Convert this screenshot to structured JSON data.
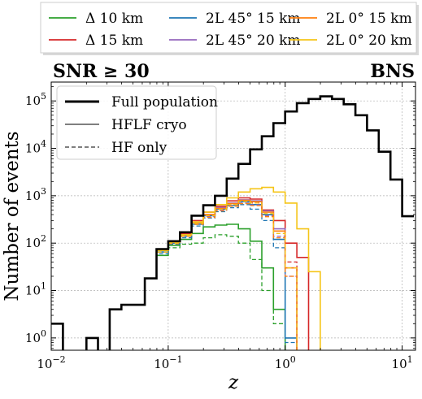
{
  "chart_data": {
    "type": "line",
    "drawstyle": "steps",
    "title_left": "SNR ≥ 30",
    "title_right": "BNS",
    "xlabel": "z",
    "ylabel": "Number of events",
    "xscale": "log",
    "yscale": "log",
    "xlim": [
      0.01,
      13
    ],
    "ylim": [
      0.55,
      250000
    ],
    "grid": true,
    "x_ticks": [
      {
        "v": 0.01,
        "base": "10",
        "exp": "−2"
      },
      {
        "v": 0.1,
        "base": "10",
        "exp": "−1"
      },
      {
        "v": 1,
        "base": "10",
        "exp": "0"
      },
      {
        "v": 10,
        "base": "10",
        "exp": "1"
      }
    ],
    "y_ticks": [
      {
        "v": 1,
        "base": "10",
        "exp": "0"
      },
      {
        "v": 10,
        "base": "10",
        "exp": "1"
      },
      {
        "v": 100,
        "base": "10",
        "exp": "2"
      },
      {
        "v": 1000,
        "base": "10",
        "exp": "3"
      },
      {
        "v": 10000,
        "base": "10",
        "exp": "4"
      },
      {
        "v": 100000,
        "base": "10",
        "exp": "5"
      }
    ],
    "bin_edges": [
      0.01,
      0.0126,
      0.0158,
      0.02,
      0.0251,
      0.0316,
      0.0398,
      0.0501,
      0.0631,
      0.0794,
      0.1,
      0.1259,
      0.1585,
      0.1995,
      0.2512,
      0.3162,
      0.3981,
      0.5012,
      0.631,
      0.7943,
      1.0,
      1.2589,
      1.5849,
      1.9953,
      2.5119,
      3.1623,
      3.9811,
      5.0119,
      6.3096,
      7.9433,
      10.0,
      12.5893
    ],
    "series_legend": [
      {
        "name": "Δ 10 km",
        "color": "#2ca02c"
      },
      {
        "name": "Δ 15 km",
        "color": "#d62728"
      },
      {
        "name": "2L 45° 15 km",
        "color": "#1f77b4"
      },
      {
        "name": "2L 45° 20 km",
        "color": "#9467bd"
      },
      {
        "name": "2L 0° 15 km",
        "color": "#ff7f0e"
      },
      {
        "name": "2L 0° 20 km",
        "color": "#f5c518"
      }
    ],
    "style_legend": [
      {
        "name": "Full population",
        "color": "#000000",
        "dash": "none",
        "width": 3
      },
      {
        "name": "HFLF cryo",
        "color": "#555555",
        "dash": "none",
        "width": 1.4
      },
      {
        "name": "HF only",
        "color": "#555555",
        "dash": "5,3",
        "width": 1.4
      }
    ],
    "full_population": {
      "name": "Full population",
      "color": "#000000",
      "values": [
        2,
        0.3,
        0.3,
        1,
        0.3,
        4,
        5,
        5,
        18,
        75,
        110,
        170,
        380,
        630,
        1000,
        2300,
        4700,
        9500,
        18000,
        34000,
        60000,
        90000,
        110000,
        125000,
        110000,
        85000,
        50000,
        24000,
        8500,
        2200,
        370
      ]
    },
    "series": [
      {
        "name": "Δ 10 km",
        "color": "#2ca02c",
        "style": "solid",
        "values": [
          2,
          0.3,
          0.3,
          1,
          0.3,
          4,
          5,
          5,
          18,
          55,
          90,
          120,
          160,
          220,
          240,
          250,
          200,
          110,
          30,
          4,
          0.3,
          0.3,
          0.3,
          0.3,
          0.3,
          0.3,
          0.3,
          0.3,
          0.3,
          0.3,
          0.3
        ]
      },
      {
        "name": "Δ 10 km",
        "color": "#2ca02c",
        "style": "dashed",
        "values": [
          2,
          0.3,
          0.3,
          1,
          0.3,
          4,
          5,
          5,
          18,
          55,
          80,
          95,
          100,
          130,
          150,
          140,
          100,
          45,
          10,
          2,
          0.3,
          0.3,
          0.3,
          0.3,
          0.3,
          0.3,
          0.3,
          0.3,
          0.3,
          0.3,
          0.3
        ]
      },
      {
        "name": "Δ 15 km",
        "color": "#d62728",
        "style": "solid",
        "values": [
          2,
          0.3,
          0.3,
          1,
          0.3,
          4,
          5,
          5,
          18,
          75,
          110,
          160,
          300,
          450,
          600,
          780,
          900,
          850,
          500,
          300,
          100,
          50,
          0.3,
          0.3,
          0.3,
          0.3,
          0.3,
          0.3,
          0.3,
          0.3,
          0.3
        ]
      },
      {
        "name": "Δ 15 km",
        "color": "#d62728",
        "style": "dashed",
        "values": [
          2,
          0.3,
          0.3,
          1,
          0.3,
          4,
          5,
          5,
          18,
          65,
          100,
          140,
          260,
          380,
          520,
          650,
          750,
          700,
          400,
          180,
          40,
          0.3,
          0.3,
          0.3,
          0.3,
          0.3,
          0.3,
          0.3,
          0.3,
          0.3,
          0.3
        ]
      },
      {
        "name": "2L 45° 15 km",
        "color": "#1f77b4",
        "style": "solid",
        "values": [
          2,
          0.3,
          0.3,
          1,
          0.3,
          4,
          5,
          5,
          18,
          65,
          100,
          140,
          250,
          380,
          520,
          620,
          750,
          650,
          400,
          120,
          1,
          0.3,
          0.3,
          0.3,
          0.3,
          0.3,
          0.3,
          0.3,
          0.3,
          0.3,
          0.3
        ]
      },
      {
        "name": "2L 45° 15 km",
        "color": "#1f77b4",
        "style": "dashed",
        "values": [
          2,
          0.3,
          0.3,
          1,
          0.3,
          4,
          5,
          5,
          18,
          60,
          95,
          130,
          230,
          340,
          460,
          560,
          650,
          520,
          300,
          80,
          0.8,
          0.3,
          0.3,
          0.3,
          0.3,
          0.3,
          0.3,
          0.3,
          0.3,
          0.3,
          0.3
        ]
      },
      {
        "name": "2L 45° 20 km",
        "color": "#9467bd",
        "style": "solid",
        "values": [
          2,
          0.3,
          0.3,
          1,
          0.3,
          4,
          5,
          5,
          18,
          70,
          105,
          150,
          270,
          400,
          560,
          700,
          820,
          780,
          480,
          200,
          30,
          0.3,
          0.3,
          0.3,
          0.3,
          0.3,
          0.3,
          0.3,
          0.3,
          0.3,
          0.3
        ]
      },
      {
        "name": "2L 45° 20 km",
        "color": "#9467bd",
        "style": "dashed",
        "values": [
          2,
          0.3,
          0.3,
          1,
          0.3,
          4,
          5,
          5,
          18,
          65,
          98,
          140,
          250,
          360,
          500,
          610,
          700,
          640,
          380,
          140,
          20,
          0.3,
          0.3,
          0.3,
          0.3,
          0.3,
          0.3,
          0.3,
          0.3,
          0.3,
          0.3
        ]
      },
      {
        "name": "2L 0° 15 km",
        "color": "#ff7f0e",
        "style": "solid",
        "values": [
          2,
          0.3,
          0.3,
          1,
          0.3,
          4,
          5,
          5,
          18,
          70,
          105,
          150,
          270,
          400,
          540,
          680,
          800,
          750,
          450,
          180,
          30,
          0.3,
          0.3,
          0.3,
          0.3,
          0.3,
          0.3,
          0.3,
          0.3,
          0.3,
          0.3
        ]
      },
      {
        "name": "2L 0° 15 km",
        "color": "#ff7f0e",
        "style": "dashed",
        "values": [
          2,
          0.3,
          0.3,
          1,
          0.3,
          4,
          5,
          5,
          18,
          65,
          98,
          140,
          250,
          350,
          480,
          600,
          680,
          620,
          360,
          130,
          20,
          0.3,
          0.3,
          0.3,
          0.3,
          0.3,
          0.3,
          0.3,
          0.3,
          0.3,
          0.3
        ]
      },
      {
        "name": "2L 0° 20 km",
        "color": "#f5c518",
        "style": "solid",
        "values": [
          2,
          0.3,
          0.3,
          1,
          0.3,
          4,
          5,
          5,
          18,
          70,
          105,
          150,
          280,
          450,
          650,
          900,
          1200,
          1400,
          1500,
          1200,
          700,
          200,
          25,
          0.3,
          0.3,
          0.3,
          0.3,
          0.3,
          0.3,
          0.3,
          0.3
        ]
      },
      {
        "name": "2L 0° 20 km",
        "color": "#f5c518",
        "style": "dashed",
        "values": [
          2,
          0.3,
          0.3,
          1,
          0.3,
          4,
          5,
          5,
          18,
          65,
          100,
          145,
          260,
          380,
          520,
          650,
          760,
          700,
          420,
          160,
          30,
          0.3,
          0.3,
          0.3,
          0.3,
          0.3,
          0.3,
          0.3,
          0.3,
          0.3,
          0.3
        ]
      }
    ]
  }
}
